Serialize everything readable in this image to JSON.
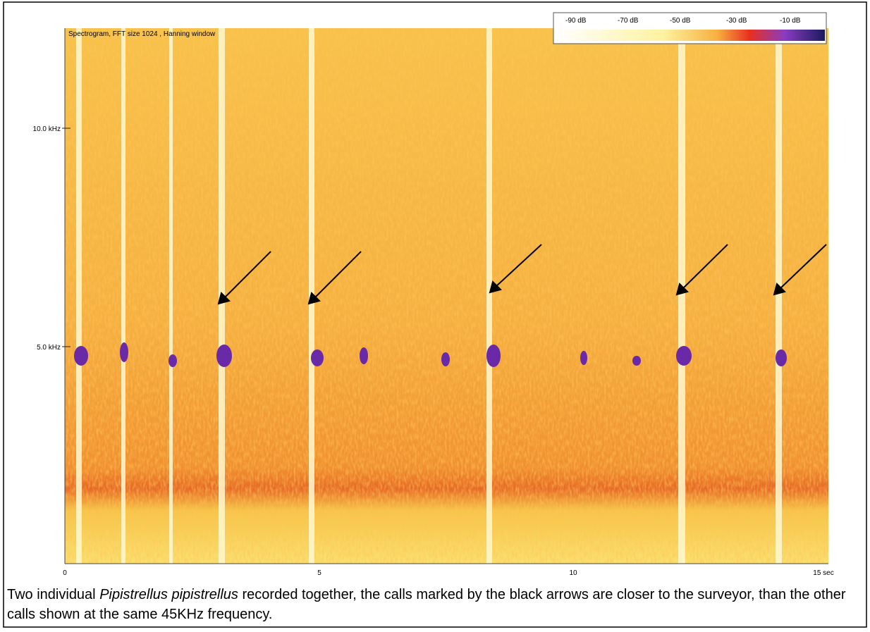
{
  "figure": {
    "title": "Spectrogram, FFT size 1024 , Hanning window",
    "legend": [
      "-90 dB",
      "-70 dB",
      "-50 dB",
      "-30 dB",
      "-10 dB"
    ],
    "y_ticks": [
      "10.0 kHz",
      "5.0 kHz"
    ],
    "x_ticks": [
      "0",
      "5",
      "10",
      "15 sec"
    ]
  },
  "caption": {
    "before": "Two individual",
    "species": "Pipistrellus pipistrellus",
    "after": "recorded together, the calls marked by the black arrows are closer to the surveyor, than the other calls shown at the same 45KHz frequency."
  }
}
